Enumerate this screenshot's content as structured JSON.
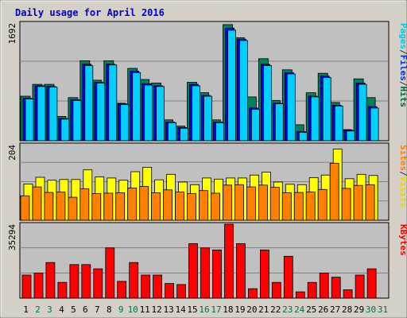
{
  "title": "Daily usage for April 2016",
  "legend": {
    "top": [
      {
        "text": "Pages",
        "color": "#00c8e8"
      },
      {
        "text": "/",
        "color": "#333333"
      },
      {
        "text": "Files",
        "color": "#0033cc"
      },
      {
        "text": "/",
        "color": "#333333"
      },
      {
        "text": "Hits",
        "color": "#006644"
      }
    ],
    "middle": [
      {
        "text": "Sites",
        "color": "#ff8000"
      },
      {
        "text": "/",
        "color": "#333333"
      },
      {
        "text": "Visits",
        "color": "#e8d800"
      }
    ],
    "bottom": [
      {
        "text": "KBytes",
        "color": "#ff0000"
      }
    ]
  },
  "colors": {
    "background": "#d4d0c8",
    "plot": "#c0c0c0",
    "title": "#0000cc",
    "hits": "#00805c",
    "files": "#0000ff",
    "pages": "#00d0ff",
    "visits": "#ffff00",
    "sites": "#ff8000",
    "kbytes": "#ff0000",
    "weekday": "#000000",
    "weekend": "#007040"
  },
  "chart_data": [
    {
      "type": "bar",
      "name": "hits-files-pages",
      "ymax_label": "1692",
      "ylim": [
        0,
        1692
      ],
      "categories": [
        "1",
        "2",
        "3",
        "4",
        "5",
        "6",
        "7",
        "8",
        "9",
        "10",
        "11",
        "12",
        "13",
        "14",
        "15",
        "16",
        "17",
        "18",
        "19",
        "20",
        "21",
        "22",
        "23",
        "24",
        "25",
        "26",
        "27",
        "28",
        "29",
        "30",
        "31"
      ],
      "series": [
        {
          "name": "Hits",
          "values": [
            640,
            810,
            810,
            350,
            620,
            1150,
            870,
            1150,
            540,
            1040,
            880,
            830,
            300,
            210,
            840,
            690,
            300,
            1670,
            1480,
            630,
            1180,
            580,
            1020,
            230,
            690,
            970,
            550,
            160,
            890,
            620,
            null
          ]
        },
        {
          "name": "Files",
          "values": [
            610,
            790,
            780,
            320,
            590,
            1100,
            840,
            1100,
            530,
            1000,
            820,
            790,
            270,
            190,
            810,
            650,
            270,
            1620,
            1460,
            470,
            1100,
            540,
            980,
            130,
            640,
            930,
            510,
            150,
            830,
            490,
            null
          ]
        },
        {
          "name": "Pages",
          "values": [
            600,
            780,
            770,
            310,
            580,
            1080,
            830,
            1090,
            520,
            980,
            800,
            780,
            260,
            180,
            790,
            640,
            260,
            1590,
            1440,
            450,
            1080,
            530,
            960,
            120,
            630,
            910,
            500,
            140,
            810,
            470,
            null
          ]
        }
      ]
    },
    {
      "type": "bar",
      "name": "visits-sites",
      "ymax_label": "204",
      "ylim": [
        0,
        204
      ],
      "categories": [
        "1",
        "2",
        "3",
        "4",
        "5",
        "6",
        "7",
        "8",
        "9",
        "10",
        "11",
        "12",
        "13",
        "14",
        "15",
        "16",
        "17",
        "18",
        "19",
        "20",
        "21",
        "22",
        "23",
        "24",
        "25",
        "26",
        "27",
        "28",
        "29",
        "30",
        "31"
      ],
      "series": [
        {
          "name": "Visits",
          "values": [
            98,
            116,
            108,
            110,
            110,
            136,
            117,
            114,
            108,
            131,
            143,
            109,
            124,
            103,
            96,
            114,
            111,
            114,
            114,
            122,
            130,
            103,
            97,
            96,
            115,
            122,
            192,
            112,
            124,
            121,
            null
          ]
        },
        {
          "name": "Sites",
          "values": [
            66,
            90,
            75,
            76,
            62,
            85,
            72,
            73,
            74,
            87,
            91,
            74,
            82,
            76,
            72,
            80,
            73,
            95,
            96,
            90,
            95,
            89,
            74,
            75,
            76,
            83,
            154,
            86,
            94,
            96,
            null
          ]
        }
      ]
    },
    {
      "type": "bar",
      "name": "kbytes",
      "ymax_label": "35294",
      "ylim": [
        0,
        35294
      ],
      "categories": [
        "1",
        "2",
        "3",
        "4",
        "5",
        "6",
        "7",
        "8",
        "9",
        "10",
        "11",
        "12",
        "13",
        "14",
        "15",
        "16",
        "17",
        "18",
        "19",
        "20",
        "21",
        "22",
        "23",
        "24",
        "25",
        "26",
        "27",
        "28",
        "29",
        "30",
        "31"
      ],
      "series": [
        {
          "name": "KBytes",
          "values": [
            11000,
            12000,
            17000,
            7500,
            16000,
            16000,
            14000,
            24000,
            8000,
            17000,
            11000,
            11000,
            7000,
            6500,
            26000,
            24000,
            23000,
            35294,
            26000,
            4500,
            23000,
            7500,
            20000,
            3000,
            7500,
            12000,
            10000,
            4000,
            11000,
            14000,
            null
          ]
        }
      ]
    }
  ],
  "weekend_days": [
    "2",
    "3",
    "9",
    "10",
    "16",
    "17",
    "23",
    "24",
    "30",
    "31"
  ]
}
